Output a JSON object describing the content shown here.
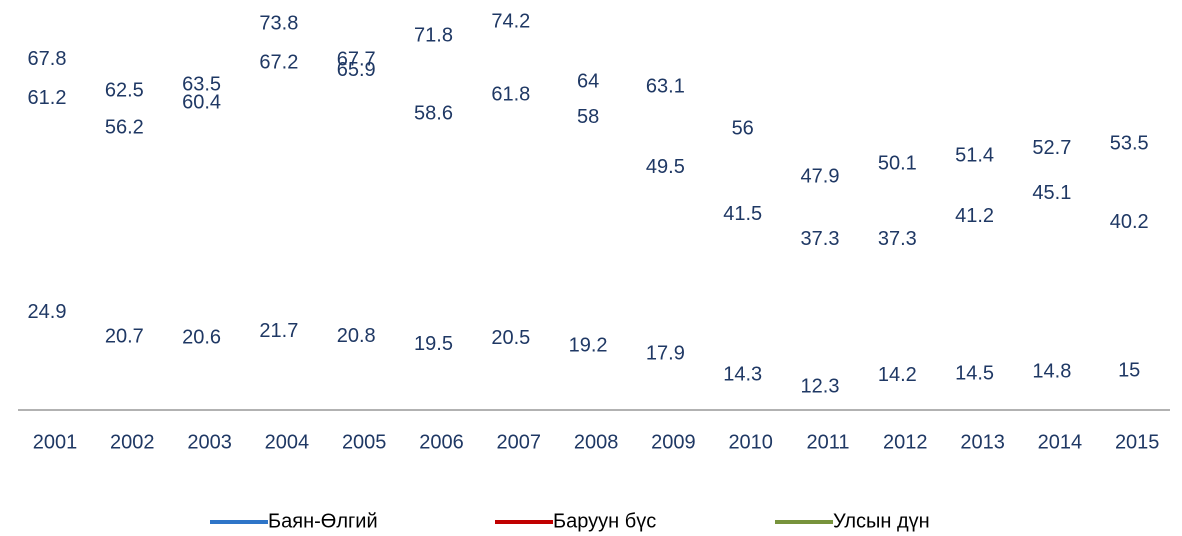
{
  "chart_data": {
    "type": "line",
    "categories": [
      "2001",
      "2002",
      "2003",
      "2004",
      "2005",
      "2006",
      "2007",
      "2008",
      "2009",
      "2010",
      "2011",
      "2012",
      "2013",
      "2014",
      "2015"
    ],
    "series": [
      {
        "name": "Баян-Өлгий",
        "color": "#2e75c8",
        "values": [
          67.8,
          62.5,
          63.5,
          73.8,
          67.7,
          71.8,
          74.2,
          64,
          63.1,
          56,
          47.9,
          50.1,
          51.4,
          52.7,
          53.5
        ]
      },
      {
        "name": "Баруун бүс",
        "color": "#c00000",
        "values": [
          61.2,
          56.2,
          60.4,
          67.2,
          65.9,
          58.6,
          61.8,
          58,
          49.5,
          41.5,
          37.3,
          37.3,
          41.2,
          45.1,
          40.2
        ]
      },
      {
        "name": "Улсын дүн",
        "color": "#77933c",
        "values": [
          24.9,
          20.7,
          20.6,
          21.7,
          20.8,
          19.5,
          20.5,
          19.2,
          17.9,
          14.3,
          12.3,
          14.2,
          14.5,
          14.8,
          15
        ]
      }
    ]
  }
}
